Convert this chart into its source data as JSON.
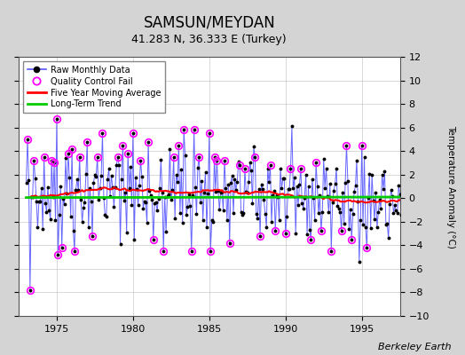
{
  "title": "SAMSUN/MEYDAN",
  "subtitle": "41.283 N, 36.333 E (Turkey)",
  "ylabel": "Temperature Anomaly (°C)",
  "credit": "Berkeley Earth",
  "xlim": [
    1972.5,
    1997.5
  ],
  "ylim": [
    -10,
    12
  ],
  "yticks": [
    -10,
    -8,
    -6,
    -4,
    -2,
    0,
    2,
    4,
    6,
    8,
    10,
    12
  ],
  "xticks": [
    1975,
    1980,
    1985,
    1990,
    1995
  ],
  "bg_color": "#d4d4d4",
  "plot_bg": "#ffffff",
  "raw_line_color": "#5555ff",
  "raw_dot_color": "#000000",
  "qc_color": "#ff00ff",
  "moving_avg_color": "#ff0000",
  "trend_color": "#00cc00",
  "seed": 42
}
